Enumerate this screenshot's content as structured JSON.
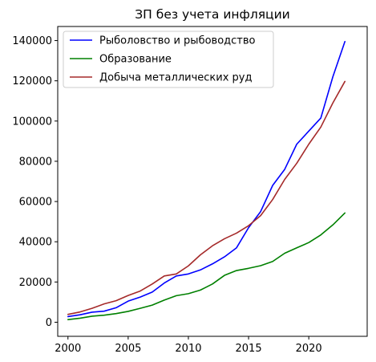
{
  "chart_data": {
    "type": "line",
    "title": "ЗП без учета инфляции",
    "xlabel": "",
    "ylabel": "",
    "x": [
      2000,
      2001,
      2002,
      2003,
      2004,
      2005,
      2006,
      2007,
      2008,
      2009,
      2010,
      2011,
      2012,
      2013,
      2014,
      2015,
      2016,
      2017,
      2018,
      2019,
      2020,
      2021,
      2022,
      2023
    ],
    "xlim": [
      1999.15,
      2024.85
    ],
    "ylim": [
      -7000,
      147000
    ],
    "x_ticks": [
      2000,
      2005,
      2010,
      2015,
      2020
    ],
    "x_tick_labels": [
      "2000",
      "2005",
      "2010",
      "2015",
      "2020"
    ],
    "y_ticks": [
      0,
      20000,
      40000,
      60000,
      80000,
      100000,
      120000,
      140000
    ],
    "y_tick_labels": [
      "0",
      "20000",
      "40000",
      "60000",
      "80000",
      "100000",
      "120000",
      "140000"
    ],
    "grid": false,
    "legend_position": "top-left",
    "series": [
      {
        "name": "Рыболовство и рыбоводство",
        "color": "#0000ff",
        "values": [
          2800,
          3700,
          5000,
          5500,
          7200,
          10500,
          12500,
          15000,
          19500,
          23000,
          24000,
          26000,
          29000,
          32500,
          37000,
          47000,
          55000,
          68000,
          76000,
          88500,
          95000,
          101500,
          122000,
          139500
        ]
      },
      {
        "name": "Образование",
        "color": "#008000",
        "values": [
          1300,
          2000,
          3000,
          3500,
          4300,
          5400,
          6900,
          8500,
          11000,
          13200,
          14200,
          16000,
          19000,
          23300,
          25700,
          26800,
          28100,
          30200,
          34300,
          37000,
          39600,
          43400,
          48400,
          54300
        ]
      },
      {
        "name": "Добыча металлических руд",
        "color": "#a52a2a",
        "values": [
          3900,
          5100,
          6900,
          9100,
          10700,
          13300,
          15500,
          19000,
          23000,
          24000,
          28000,
          33500,
          38000,
          41500,
          44300,
          48000,
          53000,
          61000,
          71000,
          79000,
          88500,
          97000,
          109000,
          119700
        ]
      }
    ]
  }
}
